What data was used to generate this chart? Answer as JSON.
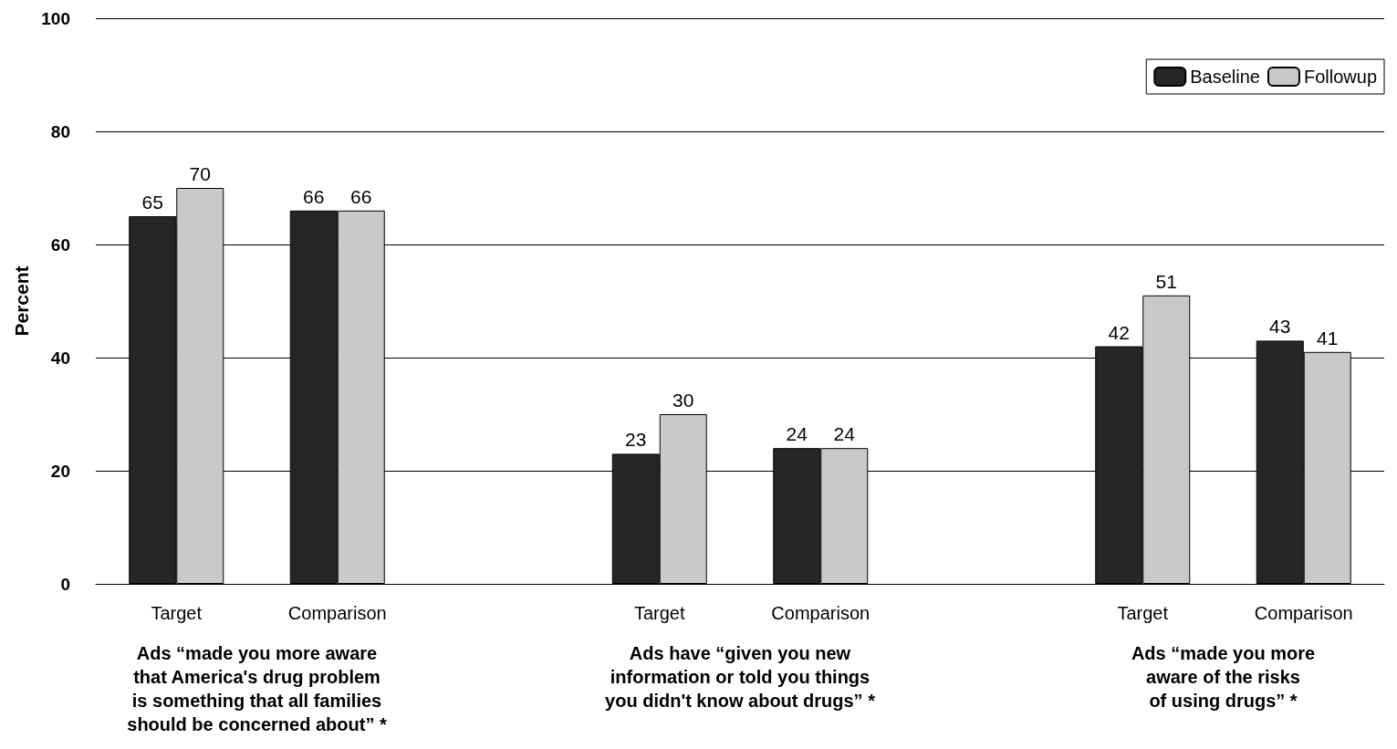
{
  "chart_data": {
    "type": "bar",
    "ylabel": "Percent",
    "categories": [
      "Target",
      "Comparison",
      null,
      "Target",
      "Comparison",
      null,
      "Target",
      "Comparison"
    ],
    "series": [
      {
        "name": "Baseline",
        "color": "#262626",
        "values": [
          65,
          66,
          null,
          23,
          24,
          null,
          42,
          43
        ]
      },
      {
        "name": "Followup",
        "color": "#c9c9c9",
        "values": [
          70,
          66,
          null,
          30,
          24,
          null,
          51,
          41
        ]
      }
    ],
    "ylim": [
      0,
      100
    ],
    "yticks": [
      0,
      20,
      40,
      60,
      80,
      100
    ],
    "grid": "y",
    "legend": "top right",
    "data_labels": true,
    "annotations": [
      "Ads “made you more aware\nthat America's drug problem\nis something that all families\nshould be concerned about” *",
      "Ads have “given you new\ninformation or told you things\nyou didn't know about drugs” *",
      "Ads “made you more\naware of the risks\nof using drugs” *"
    ]
  }
}
